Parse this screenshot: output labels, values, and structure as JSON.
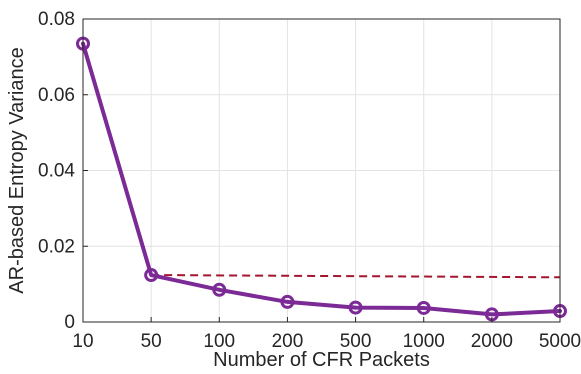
{
  "chart_data": {
    "type": "line",
    "title": "",
    "xlabel": "Number of CFR Packets",
    "ylabel": "AR-based Entropy Variance",
    "categories": [
      "10",
      "50",
      "100",
      "200",
      "500",
      "1000",
      "2000",
      "5000"
    ],
    "ylim": [
      0,
      0.08
    ],
    "yticks": [
      "0",
      "0.02",
      "0.04",
      "0.06",
      "0.08"
    ],
    "ytick_values": [
      0,
      0.02,
      0.04,
      0.06,
      0.08
    ],
    "grid": true,
    "legend": "none",
    "series": [
      {
        "values": [
          0.0735,
          0.0124,
          0.0085,
          0.0053,
          0.0038,
          0.0037,
          0.002,
          0.0029
        ],
        "color": "#7b2a96",
        "style": "solid",
        "marker": "circle"
      },
      {
        "values_start_end": [
          0.0124,
          0.0118
        ],
        "color": "#a3162f",
        "style": "dashed",
        "marker": "none"
      }
    ]
  }
}
